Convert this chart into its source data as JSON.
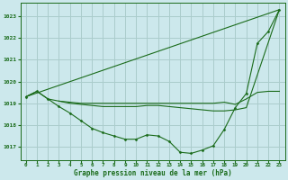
{
  "title": "Graphe pression niveau de la mer (hPa)",
  "bg_color": "#cce8ec",
  "grid_color": "#aacccc",
  "line_color": "#1a6b1a",
  "xlim": [
    -0.5,
    23.5
  ],
  "ylim": [
    1016.4,
    1023.6
  ],
  "yticks": [
    1017,
    1018,
    1019,
    1020,
    1021,
    1022,
    1023
  ],
  "xticks": [
    0,
    1,
    2,
    3,
    4,
    5,
    6,
    7,
    8,
    9,
    10,
    11,
    12,
    13,
    14,
    15,
    16,
    17,
    18,
    19,
    20,
    21,
    22,
    23
  ],
  "series": [
    {
      "x": [
        0,
        1,
        2,
        3,
        4,
        5,
        6,
        7,
        8,
        9,
        10,
        11,
        12,
        13,
        14,
        15,
        16,
        17,
        18,
        19,
        20,
        21,
        22,
        23
      ],
      "y": [
        1019.3,
        1019.55,
        1019.2,
        1018.85,
        1018.55,
        1018.2,
        1017.85,
        1017.65,
        1017.5,
        1017.35,
        1017.35,
        1017.55,
        1017.5,
        1017.25,
        1016.75,
        1016.7,
        1016.85,
        1017.05,
        1017.8,
        1018.8,
        1019.45,
        1021.75,
        1022.3,
        1023.3
      ],
      "marker": true
    },
    {
      "x": [
        0,
        1,
        2,
        3,
        4,
        5,
        6,
        7,
        8,
        9,
        10,
        11,
        12,
        13,
        14,
        15,
        16,
        17,
        18,
        19,
        20,
        21,
        22,
        23
      ],
      "y": [
        1019.3,
        1019.55,
        1019.2,
        1019.1,
        1019.05,
        1019.0,
        1019.0,
        1019.0,
        1019.0,
        1019.0,
        1019.0,
        1019.0,
        1019.0,
        1019.0,
        1019.0,
        1019.0,
        1019.0,
        1019.0,
        1019.05,
        1018.95,
        1019.2,
        1019.5,
        1019.55,
        1019.55
      ],
      "marker": false
    },
    {
      "x": [
        0,
        23
      ],
      "y": [
        1019.3,
        1023.3
      ],
      "marker": false
    },
    {
      "x": [
        3,
        4,
        5,
        6,
        7,
        8,
        9,
        10,
        11,
        12,
        13,
        14,
        15,
        16,
        17,
        18,
        19,
        20,
        23
      ],
      "y": [
        1019.1,
        1019.0,
        1018.95,
        1018.9,
        1018.85,
        1018.85,
        1018.85,
        1018.85,
        1018.9,
        1018.9,
        1018.85,
        1018.8,
        1018.75,
        1018.7,
        1018.65,
        1018.65,
        1018.7,
        1018.8,
        1023.3
      ],
      "marker": false
    }
  ]
}
